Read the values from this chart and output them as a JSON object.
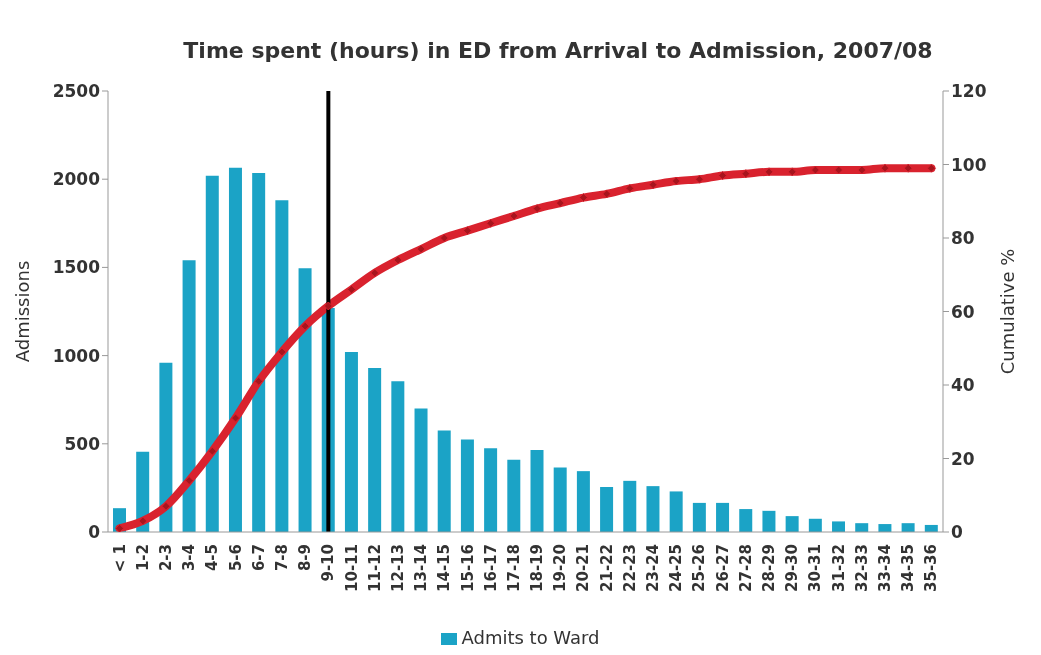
{
  "chart_data": {
    "type": "bar",
    "title": "Time spent (hours) in ED from Arrival to Admission, 2007/08",
    "ylabel": "Admissions",
    "y2label": "Cumulative %",
    "categories": [
      "< 1",
      "1-2",
      "2-3",
      "3-4",
      "4-5",
      "5-6",
      "6-7",
      "7-8",
      "8-9",
      "9-10",
      "10-11",
      "11-12",
      "12-13",
      "13-14",
      "14-15",
      "15-16",
      "16-17",
      "17-18",
      "18-19",
      "19-20",
      "20-21",
      "21-22",
      "22-23",
      "23-24",
      "24-25",
      "25-26",
      "26-27",
      "27-28",
      "28-29",
      "29-30",
      "30-31",
      "31-32",
      "32-33",
      "33-34",
      "34-35",
      "35-36"
    ],
    "series": [
      {
        "name": "Admits to Ward",
        "color": "#1ba3c6",
        "values": [
          135,
          455,
          960,
          1540,
          2020,
          2065,
          2035,
          1880,
          1495,
          1270,
          1020,
          930,
          855,
          700,
          575,
          525,
          475,
          410,
          465,
          365,
          345,
          255,
          290,
          260,
          230,
          165,
          165,
          130,
          120,
          90,
          75,
          60,
          50,
          45,
          50,
          40
        ]
      },
      {
        "type": "line",
        "axis": "y2",
        "color": "#d9222e",
        "marker": "diamond",
        "values": [
          1,
          3,
          7,
          14,
          22,
          31,
          41,
          49,
          56,
          61.5,
          66,
          70.5,
          74,
          77,
          80,
          82,
          84,
          86,
          88,
          89.5,
          91,
          92,
          93.5,
          94.5,
          95.5,
          96,
          97,
          97.5,
          98,
          98,
          98.5,
          98.5,
          98.5,
          99,
          99,
          99
        ]
      }
    ],
    "ylim": [
      0,
      2500
    ],
    "yticks": [
      0,
      500,
      1000,
      1500,
      2000,
      2500
    ],
    "y2lim": [
      0,
      120
    ],
    "y2ticks": [
      0,
      20,
      40,
      60,
      80,
      100,
      120
    ],
    "ref_lines": [
      {
        "axis": "x",
        "value": "9-10",
        "color": "#000000"
      }
    ],
    "legend": "bottom"
  }
}
